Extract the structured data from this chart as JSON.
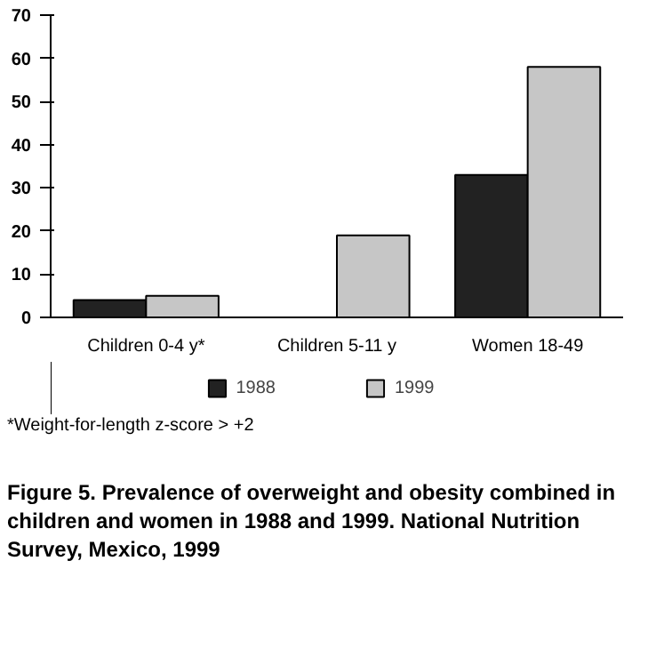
{
  "chart_data": {
    "type": "bar",
    "title": "Figure 5. Prevalence of overweight and obesity combined in children and women in 1988 and 1999. National Nutrition Survey, Mexico, 1999",
    "categories": [
      "Children 0-4 y*",
      "Children 5-11 y",
      "Women 18-49"
    ],
    "series": [
      {
        "name": "1988",
        "color": "#222222",
        "values": [
          4,
          null,
          33
        ]
      },
      {
        "name": "1999",
        "color": "#c6c6c6",
        "values": [
          5,
          19,
          58
        ]
      }
    ],
    "ylim": [
      0,
      70
    ],
    "yticks": [
      0,
      10,
      20,
      30,
      40,
      50,
      60,
      70
    ],
    "grid": false,
    "legend": "bottom",
    "annotations": [
      "*Weight-for-length z-score > +2"
    ]
  }
}
